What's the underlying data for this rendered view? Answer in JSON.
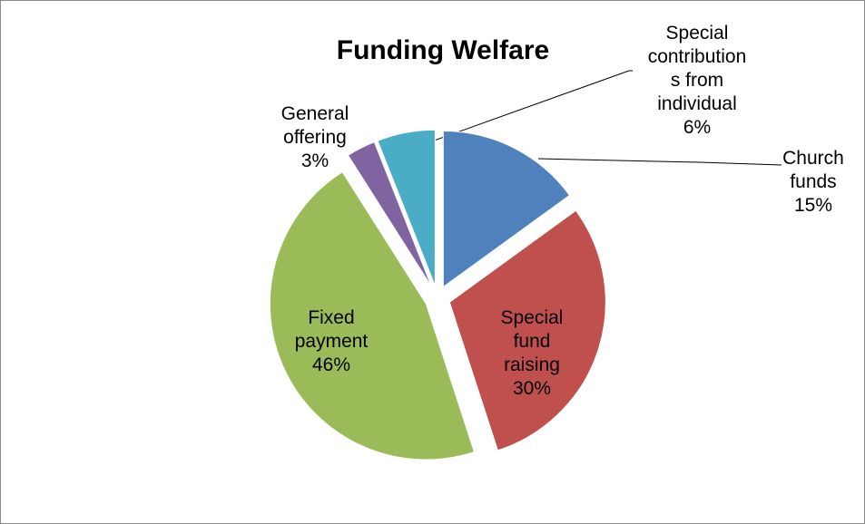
{
  "chart_data": {
    "type": "pie",
    "title": "Funding Welfare",
    "legend": "none",
    "slices": [
      {
        "label": "Church funds",
        "value": 15,
        "value_label": "15%",
        "color": "#4F81BD",
        "exploded": true
      },
      {
        "label": "Special fund raising",
        "value": 30,
        "value_label": "30%",
        "color": "#C0504D",
        "exploded": true
      },
      {
        "label": "Fixed payment",
        "value": 46,
        "value_label": "46%",
        "color": "#9BBB59",
        "exploded": true
      },
      {
        "label": "General offering",
        "value": 3,
        "value_label": "3%",
        "color": "#8064A2",
        "exploded": true
      },
      {
        "label": "Special contributions from individual",
        "value": 6,
        "value_label": "6%",
        "color": "#4BACC6",
        "exploded": true
      }
    ]
  }
}
